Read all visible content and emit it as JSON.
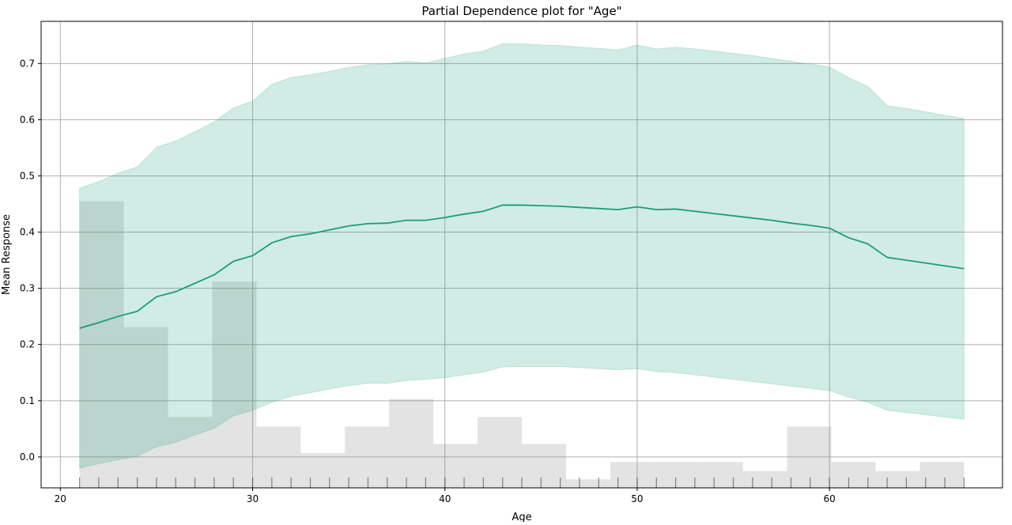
{
  "chart_data": {
    "type": "line",
    "title": "Partial Dependence plot for \"Age\"",
    "xlabel": "Age",
    "ylabel": "Mean Response",
    "xlim": [
      19,
      69
    ],
    "ylim": [
      -0.055,
      0.775
    ],
    "xticks": [
      20,
      30,
      40,
      50,
      60
    ],
    "yticks": [
      0.0,
      0.1,
      0.2,
      0.3,
      0.4,
      0.5,
      0.6,
      0.7
    ],
    "grid": true,
    "colors": {
      "line": "#1b9e77",
      "band": "#1b9e77",
      "histogram": "#808080",
      "rug": "#000000",
      "grid": "#b0b0b0"
    },
    "series": [
      {
        "x": [
          21,
          22,
          23,
          24,
          25,
          26,
          27,
          28,
          29,
          30,
          31,
          32,
          33,
          34,
          35,
          36,
          37,
          38,
          39,
          40,
          41,
          42,
          43,
          44,
          45,
          46,
          47,
          48,
          49,
          50,
          51,
          52,
          53,
          54,
          55,
          56,
          57,
          58,
          59,
          60,
          61,
          62,
          63,
          64,
          65,
          66,
          67
        ],
        "mean": [
          0.229,
          0.239,
          0.25,
          0.259,
          0.285,
          0.294,
          0.309,
          0.324,
          0.348,
          0.358,
          0.381,
          0.392,
          0.397,
          0.404,
          0.411,
          0.415,
          0.416,
          0.421,
          0.421,
          0.426,
          0.432,
          0.437,
          0.448,
          0.448,
          0.447,
          0.446,
          0.444,
          0.442,
          0.44,
          0.445,
          0.44,
          0.441,
          0.437,
          0.433,
          0.429,
          0.425,
          0.421,
          0.416,
          0.412,
          0.407,
          0.39,
          0.379,
          0.355,
          0.35,
          0.345,
          0.34,
          0.335
        ],
        "lower": [
          -0.02,
          -0.012,
          -0.005,
          0.001,
          0.018,
          0.026,
          0.039,
          0.051,
          0.073,
          0.083,
          0.097,
          0.108,
          0.114,
          0.121,
          0.127,
          0.131,
          0.131,
          0.136,
          0.138,
          0.141,
          0.146,
          0.151,
          0.16,
          0.161,
          0.161,
          0.161,
          0.159,
          0.157,
          0.155,
          0.157,
          0.152,
          0.15,
          0.146,
          0.142,
          0.138,
          0.134,
          0.13,
          0.126,
          0.122,
          0.118,
          0.106,
          0.097,
          0.083,
          0.079,
          0.075,
          0.071,
          0.067
        ],
        "upper": [
          0.478,
          0.49,
          0.505,
          0.516,
          0.551,
          0.562,
          0.579,
          0.596,
          0.621,
          0.633,
          0.663,
          0.675,
          0.68,
          0.686,
          0.693,
          0.698,
          0.699,
          0.704,
          0.701,
          0.709,
          0.717,
          0.722,
          0.735,
          0.735,
          0.733,
          0.732,
          0.729,
          0.727,
          0.724,
          0.733,
          0.726,
          0.729,
          0.726,
          0.722,
          0.718,
          0.714,
          0.709,
          0.704,
          0.699,
          0.694,
          0.675,
          0.659,
          0.625,
          0.62,
          0.614,
          0.608,
          0.602
        ]
      }
    ],
    "histogram": {
      "bins": [
        {
          "x0": 21.0,
          "x1": 23.3,
          "top": 0.455
        },
        {
          "x0": 23.3,
          "x1": 25.6,
          "top": 0.231
        },
        {
          "x0": 25.6,
          "x1": 27.9,
          "top": 0.071
        },
        {
          "x0": 27.9,
          "x1": 30.2,
          "top": 0.312
        },
        {
          "x0": 30.2,
          "x1": 32.5,
          "top": 0.054
        },
        {
          "x0": 32.5,
          "x1": 34.8,
          "top": 0.007
        },
        {
          "x0": 34.8,
          "x1": 37.1,
          "top": 0.054
        },
        {
          "x0": 37.1,
          "x1": 39.4,
          "top": 0.103
        },
        {
          "x0": 39.4,
          "x1": 41.7,
          "top": 0.023
        },
        {
          "x0": 41.7,
          "x1": 44.0,
          "top": 0.071
        },
        {
          "x0": 44.0,
          "x1": 46.3,
          "top": 0.023
        },
        {
          "x0": 46.3,
          "x1": 48.6,
          "top": -0.04
        },
        {
          "x0": 48.6,
          "x1": 50.9,
          "top": -0.009
        },
        {
          "x0": 50.9,
          "x1": 53.2,
          "top": -0.009
        },
        {
          "x0": 53.2,
          "x1": 55.5,
          "top": -0.009
        },
        {
          "x0": 55.5,
          "x1": 57.8,
          "top": -0.025
        },
        {
          "x0": 57.8,
          "x1": 60.1,
          "top": 0.054
        },
        {
          "x0": 60.1,
          "x1": 62.4,
          "top": -0.009
        },
        {
          "x0": 62.4,
          "x1": 64.7,
          "top": -0.025
        },
        {
          "x0": 64.7,
          "x1": 67.0,
          "top": -0.009
        }
      ]
    },
    "rug": [
      21,
      22,
      23,
      24,
      25,
      26,
      27,
      28,
      29,
      30,
      31,
      32,
      33,
      34,
      35,
      36,
      37,
      38,
      39,
      40,
      41,
      42,
      43,
      44,
      45,
      46,
      47,
      48,
      49,
      50,
      51,
      52,
      53,
      54,
      55,
      56,
      57,
      58,
      59,
      60,
      61,
      62,
      63,
      64,
      65,
      66,
      67
    ]
  }
}
